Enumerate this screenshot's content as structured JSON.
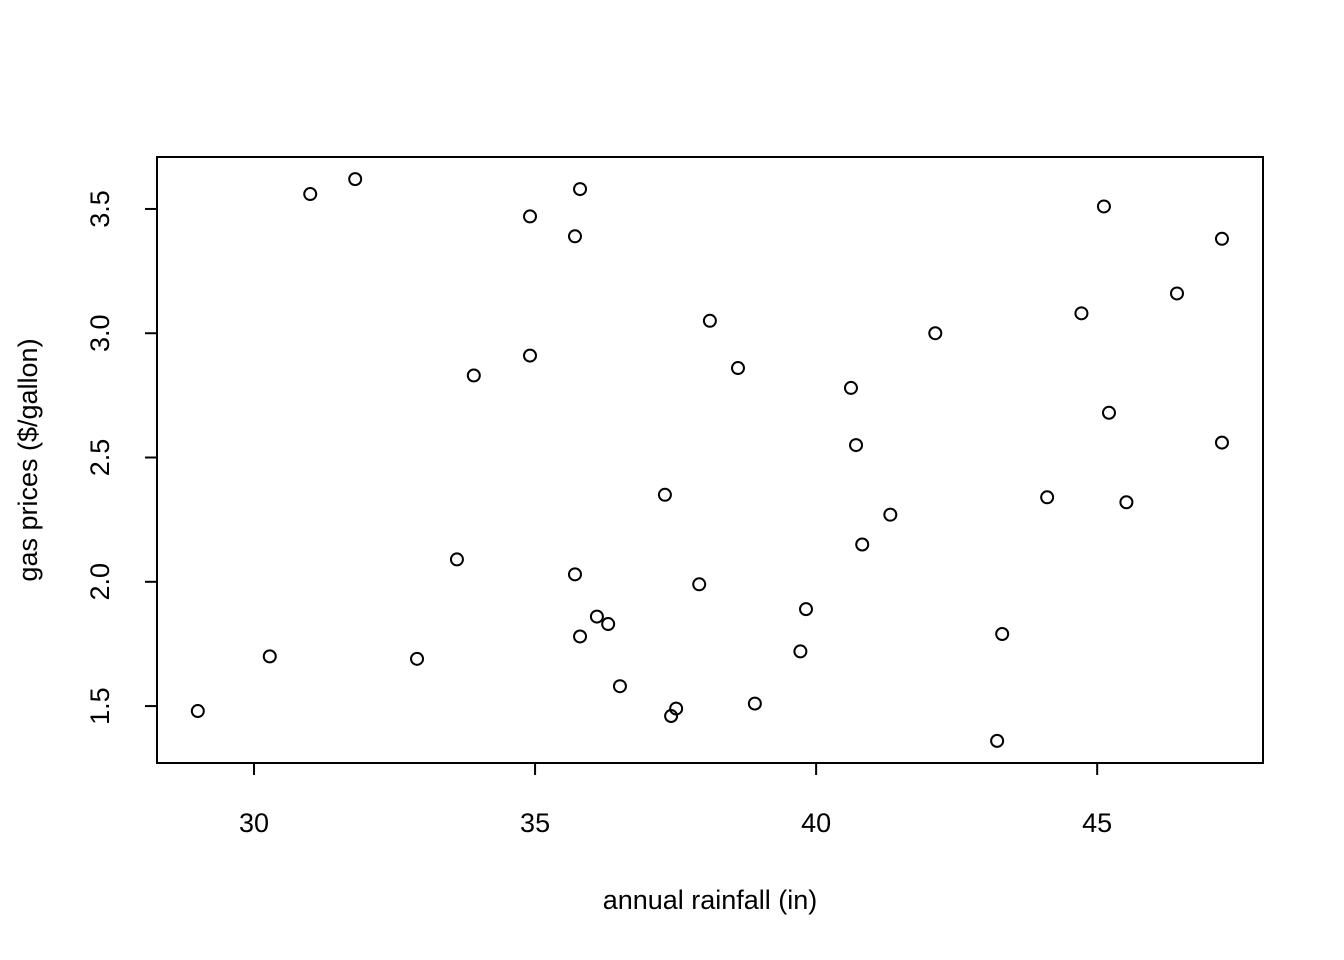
{
  "chart_data": {
    "type": "scatter",
    "x_label": "annual rainfall (in)",
    "y_label": "gas prices ($/gallon)",
    "x": [
      29.0,
      30.28,
      31.0,
      31.8,
      32.9,
      33.61,
      33.91,
      34.91,
      34.91,
      35.71,
      35.8,
      35.71,
      35.8,
      36.1,
      36.3,
      36.51,
      37.31,
      37.42,
      37.51,
      37.92,
      38.11,
      38.61,
      38.91,
      39.72,
      39.82,
      40.62,
      40.71,
      40.82,
      41.32,
      42.12,
      43.22,
      43.31,
      44.11,
      44.72,
      45.12,
      45.21,
      45.52,
      46.42,
      47.22,
      47.22
    ],
    "values": [
      1.48,
      1.7,
      3.56,
      3.62,
      1.69,
      2.09,
      2.83,
      3.47,
      2.91,
      3.39,
      3.58,
      2.03,
      1.78,
      1.86,
      1.83,
      1.58,
      2.35,
      1.46,
      1.49,
      1.99,
      3.05,
      2.86,
      1.51,
      1.72,
      1.89,
      2.78,
      2.55,
      2.15,
      2.27,
      3.0,
      1.36,
      1.79,
      2.34,
      3.08,
      3.51,
      2.68,
      2.32,
      3.16,
      3.38,
      2.56
    ],
    "color": "#000000",
    "xlim": [
      28.274,
      47.95
    ],
    "ylim": [
      1.271,
      3.709
    ],
    "xticks": [
      30,
      35,
      40,
      45
    ],
    "yticks": [
      1.5,
      {
        "value": 2,
        "label": "2.0"
      },
      2.5,
      {
        "value": 3,
        "label": "3.0"
      },
      3.5
    ],
    "grid": false
  }
}
